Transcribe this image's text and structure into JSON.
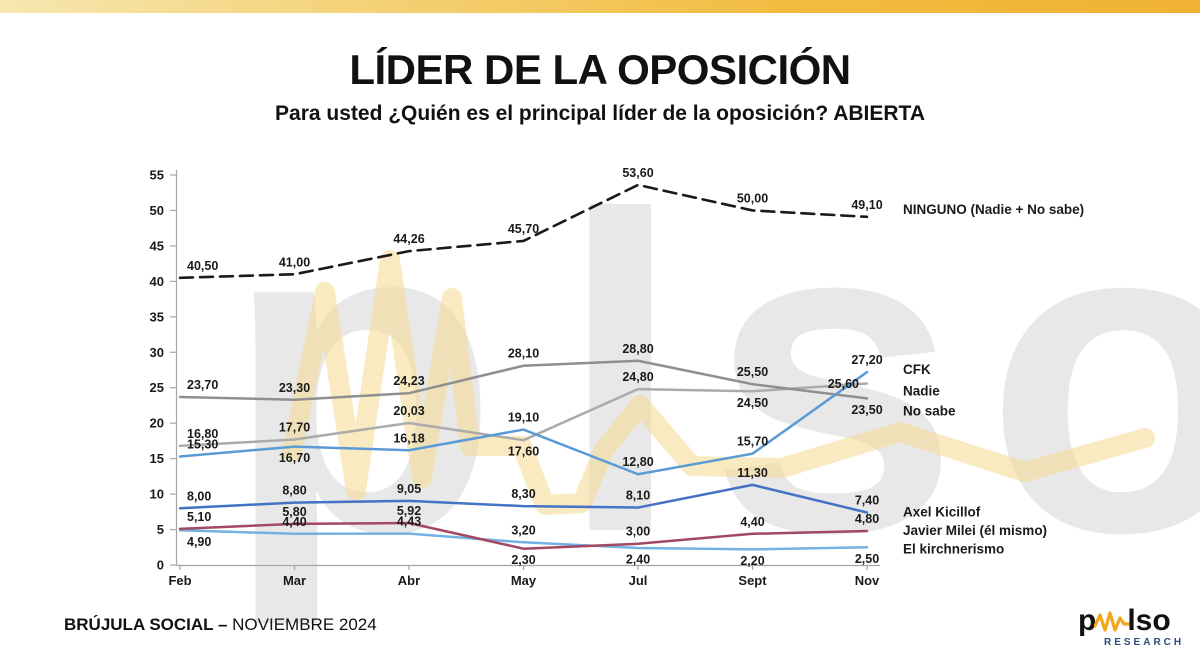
{
  "page": {
    "title": "LÍDER DE LA OPOSICIÓN",
    "subtitle": "Para usted ¿Quién es el principal líder de la oposición? ABIERTA"
  },
  "footer": {
    "brand_bold": "BRÚJULA SOCIAL –",
    "brand_rest": " NOVIEMBRE 2024"
  },
  "logo": {
    "part1": "p",
    "part2": "lso",
    "sub": "RESEARCH",
    "wave_color": "#F2A71B",
    "sub_color": "#2B4B7E"
  },
  "watermark": {
    "part1": "p",
    "part2": "lso",
    "wave_color": "#F5D98F"
  },
  "colors": {
    "topbar_left": "#F7E7B0",
    "topbar_right": "#F0B231",
    "axis": "#A6A6A6",
    "label_text": "#1A1A1A"
  },
  "chart_data": {
    "type": "line",
    "title": "LÍDER DE LA OPOSICIÓN",
    "subtitle": "Para usted ¿Quién es el principal líder de la oposición? ABIERTA",
    "categories": [
      "Feb",
      "Mar",
      "Abr",
      "May",
      "Jul",
      "Sept",
      "Nov"
    ],
    "y_axis": {
      "min": 0,
      "max": 55,
      "step": 5
    },
    "grid": false,
    "legend_position": "right",
    "number_format": "comma-decimal",
    "series": [
      {
        "name": "NINGUNO (Nadie + No sabe)",
        "color": "#1A1A1A",
        "dashed": true,
        "values": [
          40.5,
          41.0,
          44.26,
          45.7,
          53.6,
          50.0,
          49.1
        ],
        "labels": [
          "40,50",
          "41,00",
          "44,26",
          "45,70",
          "53,60",
          "50,00",
          "49,10"
        ],
        "label_pos": [
          "a",
          "a",
          "a",
          "a",
          "a",
          "a",
          "a"
        ],
        "legend_dy": -7
      },
      {
        "name": "CFK",
        "color": "#5B9BD5",
        "dashed": false,
        "values": [
          15.3,
          16.7,
          16.18,
          19.1,
          12.8,
          15.7,
          27.2
        ],
        "labels": [
          "15,30",
          "16,70",
          "16,18",
          "19,10",
          "12,80",
          "15,70",
          "27,20"
        ],
        "label_pos": [
          "a",
          "b",
          "a",
          "a",
          "a",
          "a",
          "a"
        ],
        "legend_dy": -2
      },
      {
        "name": "Nadie",
        "color": "#ABABAB",
        "dashed": false,
        "values": [
          16.8,
          17.7,
          20.03,
          17.6,
          24.8,
          24.5,
          25.6
        ],
        "labels": [
          "16,80",
          "17,70",
          "20,03",
          "17,60",
          "24,80",
          "24,50",
          "25,60"
        ],
        "label_pos": [
          "a",
          "a",
          "a",
          "b",
          "a",
          "b",
          "l"
        ],
        "legend_dy": 8
      },
      {
        "name": "No sabe",
        "color": "#8F8F8F",
        "dashed": false,
        "values": [
          23.7,
          23.3,
          24.23,
          28.1,
          28.8,
          25.5,
          23.5
        ],
        "labels": [
          "23,70",
          "23,30",
          "24,23",
          "28,10",
          "28,80",
          "25,50",
          "23,50"
        ],
        "label_pos": [
          "a",
          "a",
          "a",
          "a",
          "a",
          "a",
          "b"
        ],
        "legend_dy": 13
      },
      {
        "name": "Axel Kicillof",
        "color": "#4472C4",
        "dashed": false,
        "values": [
          8.0,
          8.8,
          9.05,
          8.3,
          8.1,
          11.3,
          7.4
        ],
        "labels": [
          "8,00",
          "8,80",
          "9,05",
          "8,30",
          "8,10",
          "11,30",
          "7,40"
        ],
        "label_pos": [
          "a",
          "a",
          "a",
          "a",
          "a",
          "a",
          "a"
        ],
        "legend_dy": 0
      },
      {
        "name": "Javier Milei (él mismo)",
        "color": "#A34863",
        "dashed": false,
        "values": [
          5.1,
          5.8,
          5.92,
          2.3,
          3.0,
          4.4,
          4.8
        ],
        "labels": [
          "5,10",
          "5,80",
          "5,92",
          "2,30",
          "3,00",
          "4,40",
          "4,80"
        ],
        "label_pos": [
          "a",
          "a",
          "a",
          "b",
          "a",
          "a",
          "a"
        ],
        "legend_dy": 0
      },
      {
        "name": "El kirchnerismo",
        "color": "#72B1E3",
        "dashed": false,
        "values": [
          4.9,
          4.4,
          4.43,
          3.2,
          2.4,
          2.2,
          2.5
        ],
        "labels": [
          "4,90",
          "4,40",
          "4,43",
          "3,20",
          "2,40",
          "2,20",
          "2,50"
        ],
        "label_pos": [
          "b",
          "a",
          "a",
          "a",
          "b",
          "b",
          "b"
        ],
        "legend_dy": 2
      }
    ]
  }
}
